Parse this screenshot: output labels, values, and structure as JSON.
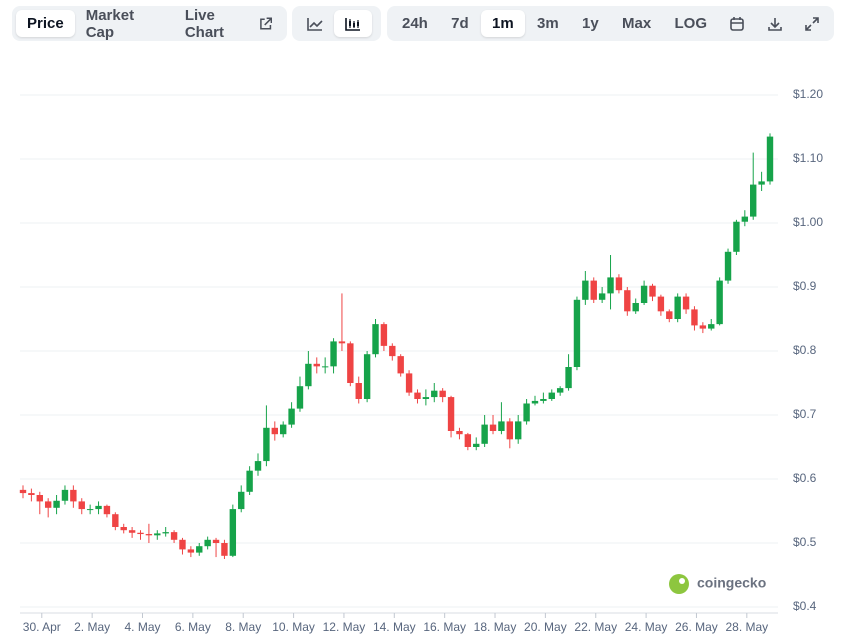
{
  "toolbar": {
    "views": [
      "Price",
      "Market Cap",
      "Live Chart"
    ],
    "ranges": [
      "24h",
      "7d",
      "1m",
      "3m",
      "1y",
      "Max",
      "LOG"
    ]
  },
  "watermark": "coingecko",
  "chart_data": {
    "type": "candlestick",
    "categories": [
      null,
      null,
      "30. Apr",
      null,
      null,
      null,
      null,
      null,
      "2. May",
      null,
      null,
      null,
      null,
      null,
      "4. May",
      null,
      null,
      null,
      null,
      null,
      "6. May",
      null,
      null,
      null,
      null,
      null,
      "8. May",
      null,
      null,
      null,
      null,
      null,
      "10. May",
      null,
      null,
      null,
      null,
      null,
      "12. May",
      null,
      null,
      null,
      null,
      null,
      "14. May",
      null,
      null,
      null,
      null,
      null,
      "16. May",
      null,
      null,
      null,
      null,
      null,
      "18. May",
      null,
      null,
      null,
      null,
      null,
      "20. May",
      null,
      null,
      null,
      null,
      null,
      "22. May",
      null,
      null,
      null,
      null,
      null,
      "24. May",
      null,
      null,
      null,
      null,
      null,
      "26. May",
      null,
      null,
      null,
      null,
      null,
      "28. May",
      null,
      null,
      null
    ],
    "open": [
      0.583,
      0.578,
      0.575,
      0.565,
      0.555,
      0.566,
      0.583,
      0.565,
      0.553,
      0.553,
      0.558,
      0.545,
      0.525,
      0.52,
      0.516,
      0.514,
      0.512,
      0.515,
      0.517,
      0.505,
      0.49,
      0.485,
      0.495,
      0.505,
      0.5,
      0.48,
      0.553,
      0.58,
      0.613,
      0.628,
      0.68,
      0.67,
      0.685,
      0.71,
      0.745,
      0.78,
      0.776,
      0.776,
      0.815,
      0.812,
      0.75,
      0.725,
      0.795,
      0.842,
      0.808,
      0.792,
      0.765,
      0.735,
      0.725,
      0.728,
      0.738,
      0.728,
      0.675,
      0.67,
      0.65,
      0.655,
      0.685,
      0.675,
      0.69,
      0.662,
      0.69,
      0.718,
      0.722,
      0.725,
      0.735,
      0.742,
      0.775,
      0.88,
      0.91,
      0.88,
      0.89,
      0.915,
      0.895,
      0.862,
      0.875,
      0.902,
      0.885,
      0.862,
      0.85,
      0.885,
      0.865,
      0.84,
      0.835,
      0.842,
      0.91,
      0.955,
      1.002,
      1.01,
      1.06,
      1.065
    ],
    "high": [
      0.59,
      0.585,
      0.58,
      0.57,
      0.575,
      0.59,
      0.59,
      0.57,
      0.56,
      0.565,
      0.56,
      0.548,
      0.53,
      0.525,
      0.52,
      0.53,
      0.52,
      0.525,
      0.52,
      0.508,
      0.495,
      0.5,
      0.51,
      0.508,
      0.505,
      0.56,
      0.59,
      0.62,
      0.64,
      0.715,
      0.69,
      0.69,
      0.72,
      0.76,
      0.8,
      0.79,
      0.79,
      0.82,
      0.89,
      0.815,
      0.76,
      0.8,
      0.85,
      0.845,
      0.812,
      0.795,
      0.77,
      0.74,
      0.74,
      0.75,
      0.742,
      0.73,
      0.68,
      0.672,
      0.665,
      0.7,
      0.7,
      0.72,
      0.695,
      0.7,
      0.725,
      0.73,
      0.735,
      0.74,
      0.745,
      0.795,
      0.885,
      0.925,
      0.915,
      0.9,
      0.95,
      0.92,
      0.9,
      0.882,
      0.91,
      0.905,
      0.888,
      0.865,
      0.89,
      0.89,
      0.87,
      0.845,
      0.85,
      0.915,
      0.96,
      1.005,
      1.02,
      1.11,
      1.08,
      1.14
    ],
    "low": [
      0.57,
      0.565,
      0.545,
      0.54,
      0.545,
      0.56,
      0.555,
      0.545,
      0.545,
      0.545,
      0.54,
      0.52,
      0.515,
      0.508,
      0.505,
      0.5,
      0.505,
      0.51,
      0.5,
      0.482,
      0.478,
      0.48,
      0.49,
      0.478,
      0.475,
      0.478,
      0.548,
      0.575,
      0.605,
      0.62,
      0.66,
      0.665,
      0.68,
      0.705,
      0.74,
      0.765,
      0.765,
      0.765,
      0.8,
      0.745,
      0.718,
      0.72,
      0.79,
      0.8,
      0.785,
      0.76,
      0.73,
      0.718,
      0.715,
      0.72,
      0.72,
      0.665,
      0.662,
      0.645,
      0.645,
      0.65,
      0.67,
      0.67,
      0.648,
      0.655,
      0.685,
      0.715,
      0.718,
      0.722,
      0.73,
      0.738,
      0.77,
      0.872,
      0.875,
      0.875,
      0.865,
      0.89,
      0.855,
      0.858,
      0.872,
      0.878,
      0.855,
      0.845,
      0.845,
      0.858,
      0.832,
      0.828,
      0.832,
      0.84,
      0.905,
      0.95,
      0.995,
      1.005,
      1.05,
      1.06
    ],
    "close": [
      0.578,
      0.575,
      0.565,
      0.555,
      0.566,
      0.583,
      0.565,
      0.553,
      0.553,
      0.558,
      0.545,
      0.525,
      0.52,
      0.516,
      0.514,
      0.512,
      0.515,
      0.517,
      0.505,
      0.49,
      0.485,
      0.495,
      0.505,
      0.5,
      0.48,
      0.553,
      0.58,
      0.613,
      0.628,
      0.68,
      0.67,
      0.685,
      0.71,
      0.745,
      0.78,
      0.776,
      0.776,
      0.815,
      0.812,
      0.75,
      0.725,
      0.795,
      0.842,
      0.808,
      0.792,
      0.765,
      0.735,
      0.725,
      0.728,
      0.738,
      0.728,
      0.675,
      0.67,
      0.65,
      0.655,
      0.685,
      0.675,
      0.69,
      0.662,
      0.69,
      0.718,
      0.722,
      0.725,
      0.735,
      0.742,
      0.775,
      0.88,
      0.91,
      0.88,
      0.89,
      0.915,
      0.895,
      0.862,
      0.875,
      0.902,
      0.885,
      0.862,
      0.85,
      0.885,
      0.865,
      0.84,
      0.835,
      0.842,
      0.91,
      0.955,
      1.002,
      1.01,
      1.06,
      1.065,
      1.135
    ],
    "up_color": "#16a34a",
    "down_color": "#ef4444",
    "ylim": [
      0.4,
      1.2
    ],
    "yticks": [
      {
        "value": 0.4,
        "label": "$0.4"
      },
      {
        "value": 0.5,
        "label": "$0.5"
      },
      {
        "value": 0.6,
        "label": "$0.6"
      },
      {
        "value": 0.7,
        "label": "$0.7"
      },
      {
        "value": 0.8,
        "label": "$0.8"
      },
      {
        "value": 0.9,
        "label": "$0.9"
      },
      {
        "value": 1.0,
        "label": "$1.00"
      },
      {
        "value": 1.1,
        "label": "$1.10"
      },
      {
        "value": 1.2,
        "label": "$1.20"
      }
    ],
    "grid": true
  }
}
